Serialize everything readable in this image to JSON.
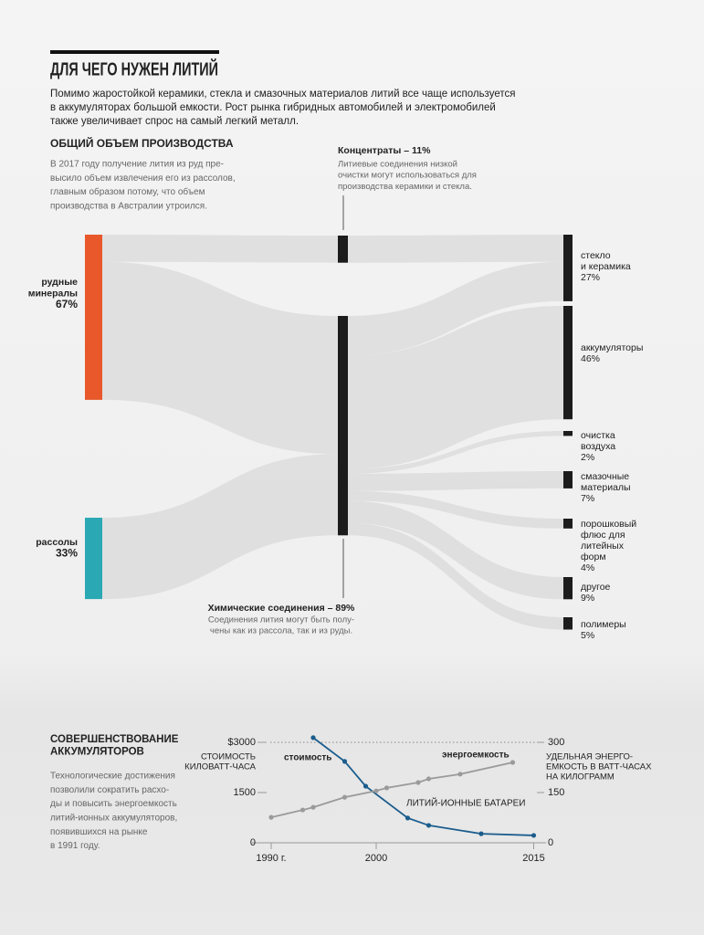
{
  "header": {
    "title": "ДЛЯ ЧЕГО НУЖЕН ЛИТИЙ",
    "intro": [
      "Помимо жаростойкой керамики, стекла и смазочных материалов литий все чаще используется",
      "в аккумуляторах большой емкости. Рост рынка гибридных автомобилей и электромобилей",
      "также увеличивает спрос на самый легкий металл."
    ]
  },
  "chart_data": [
    {
      "type": "sankey",
      "title": "ОБЩИЙ ОБЪЕМ ПРОИЗВОДСТВА",
      "description": [
        "В 2017 году получение лития из руд пре-",
        "высило объем извлечения его из рассолов,",
        "главным образом потому, что объем",
        "производства в Австралии утроился."
      ],
      "sources": {
        "names": [
          [
            "рудные",
            "минералы"
          ],
          [
            "рассолы"
          ]
        ],
        "values": [
          67,
          33
        ],
        "value_labels": [
          "67%",
          "33%"
        ],
        "colors": [
          "#e8582a",
          "#2aa8b3"
        ]
      },
      "stages": {
        "labels": [
          "Концентраты – 11%",
          "Химические соединения – 89%"
        ],
        "values": [
          11,
          89
        ],
        "notes": [
          [
            "Литиевые соединения низкой",
            "очистки могут использоваться для",
            "производства керамики и стекла."
          ],
          [
            "Соединения лития могут быть полу-",
            "чены как из рассола, так и из руды."
          ]
        ],
        "inflows": [
          [
            11,
            0
          ],
          [
            56,
            33
          ]
        ]
      },
      "targets": {
        "names": [
          [
            "стекло",
            "и керамика"
          ],
          [
            "аккумуляторы"
          ],
          [
            "очистка",
            "воздуха"
          ],
          [
            "смазочные",
            "материалы"
          ],
          [
            "порошковый",
            "флюс для",
            "литейных",
            "форм"
          ],
          [
            "другое"
          ],
          [
            "полимеры"
          ]
        ],
        "values": [
          27,
          46,
          2,
          7,
          4,
          9,
          5
        ],
        "value_labels": [
          "27%",
          "46%",
          "2%",
          "7%",
          "4%",
          "9%",
          "5%"
        ],
        "inflows": [
          [
            11,
            16
          ],
          [
            0,
            46
          ],
          [
            0,
            2
          ],
          [
            0,
            7
          ],
          [
            0,
            4
          ],
          [
            0,
            9
          ],
          [
            0,
            5
          ]
        ]
      },
      "node_color": "#1c1c1c",
      "flow_color": "#d9d9d9"
    },
    {
      "type": "line",
      "title": [
        "СОВЕРШЕНСТВОВАНИЕ",
        "АККУМУЛЯТОРОВ"
      ],
      "description": [
        "Технологические достижения",
        "позволили сократить расхо-",
        "ды и повысить энергоемкость",
        "литий-ионных аккумуляторов,",
        "появившихся на рынке",
        "в 1991 году."
      ],
      "y_label": [
        "СТОИМОСТЬ",
        "КИЛОВАТТ-ЧАСА"
      ],
      "y2_label": [
        "УДЕЛЬНАЯ ЭНЕРГО-",
        "ЕМКОСТЬ В ВАТТ-ЧАСАХ",
        "НА КИЛОГРАММ"
      ],
      "annotation": "ЛИТИЙ-ИОННЫЕ БАТАРЕИ",
      "xlim": [
        1988,
        2016
      ],
      "xticks": [
        {
          "value": 1990,
          "label": "1990 г."
        },
        2000,
        2015
      ],
      "ylim": [
        0,
        3000
      ],
      "yticks": [
        {
          "value": 3000,
          "label": "$3000"
        },
        1500,
        0
      ],
      "y2lim": [
        0,
        300
      ],
      "y2ticks": [
        300,
        150,
        0
      ],
      "series": [
        {
          "name": "стоимость",
          "color": "#1b5d8d",
          "axis": "y",
          "x": [
            1994,
            1997,
            1999,
            2003,
            2005,
            2010,
            2015
          ],
          "values": [
            3140,
            2430,
            1690,
            740,
            520,
            270,
            220
          ]
        },
        {
          "name": "энергоемкость",
          "color": "#9a9a9a",
          "axis": "y2",
          "x": [
            1990,
            1993,
            1994,
            1997,
            2000,
            2001,
            2004,
            2005,
            2008,
            2013
          ],
          "values": [
            76,
            98,
            106,
            136,
            155,
            164,
            180,
            191,
            205,
            240
          ]
        }
      ]
    }
  ]
}
